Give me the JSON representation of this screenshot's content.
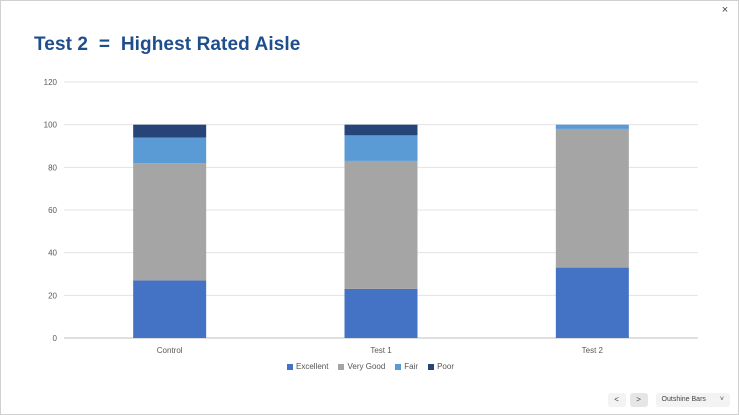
{
  "title": "Test 2  =  Highest Rated Aisle",
  "controls": {
    "close_label": "×",
    "prev_label": "<",
    "next_label": ">",
    "dropdown_label": "Outshine Bars",
    "dropdown_arrow": "˅"
  },
  "chart_data": {
    "type": "bar",
    "stacked": true,
    "title": "Test 2  =  Highest Rated Aisle",
    "categories": [
      "Control",
      "Test 1",
      "Test 2"
    ],
    "series": [
      {
        "name": "Excellent",
        "color": "#4472c4",
        "values": [
          27,
          23,
          33
        ]
      },
      {
        "name": "Very Good",
        "color": "#a5a5a5",
        "values": [
          55,
          60,
          65
        ]
      },
      {
        "name": "Fair",
        "color": "#5b9bd5",
        "values": [
          12,
          12,
          2
        ]
      },
      {
        "name": "Poor",
        "color": "#264478",
        "values": [
          6,
          5,
          0
        ]
      }
    ],
    "yticks": [
      "0",
      "20",
      "40",
      "60",
      "80",
      "100",
      "120"
    ],
    "ylim": [
      0,
      120
    ],
    "grid": true,
    "legend_position": "bottom"
  }
}
